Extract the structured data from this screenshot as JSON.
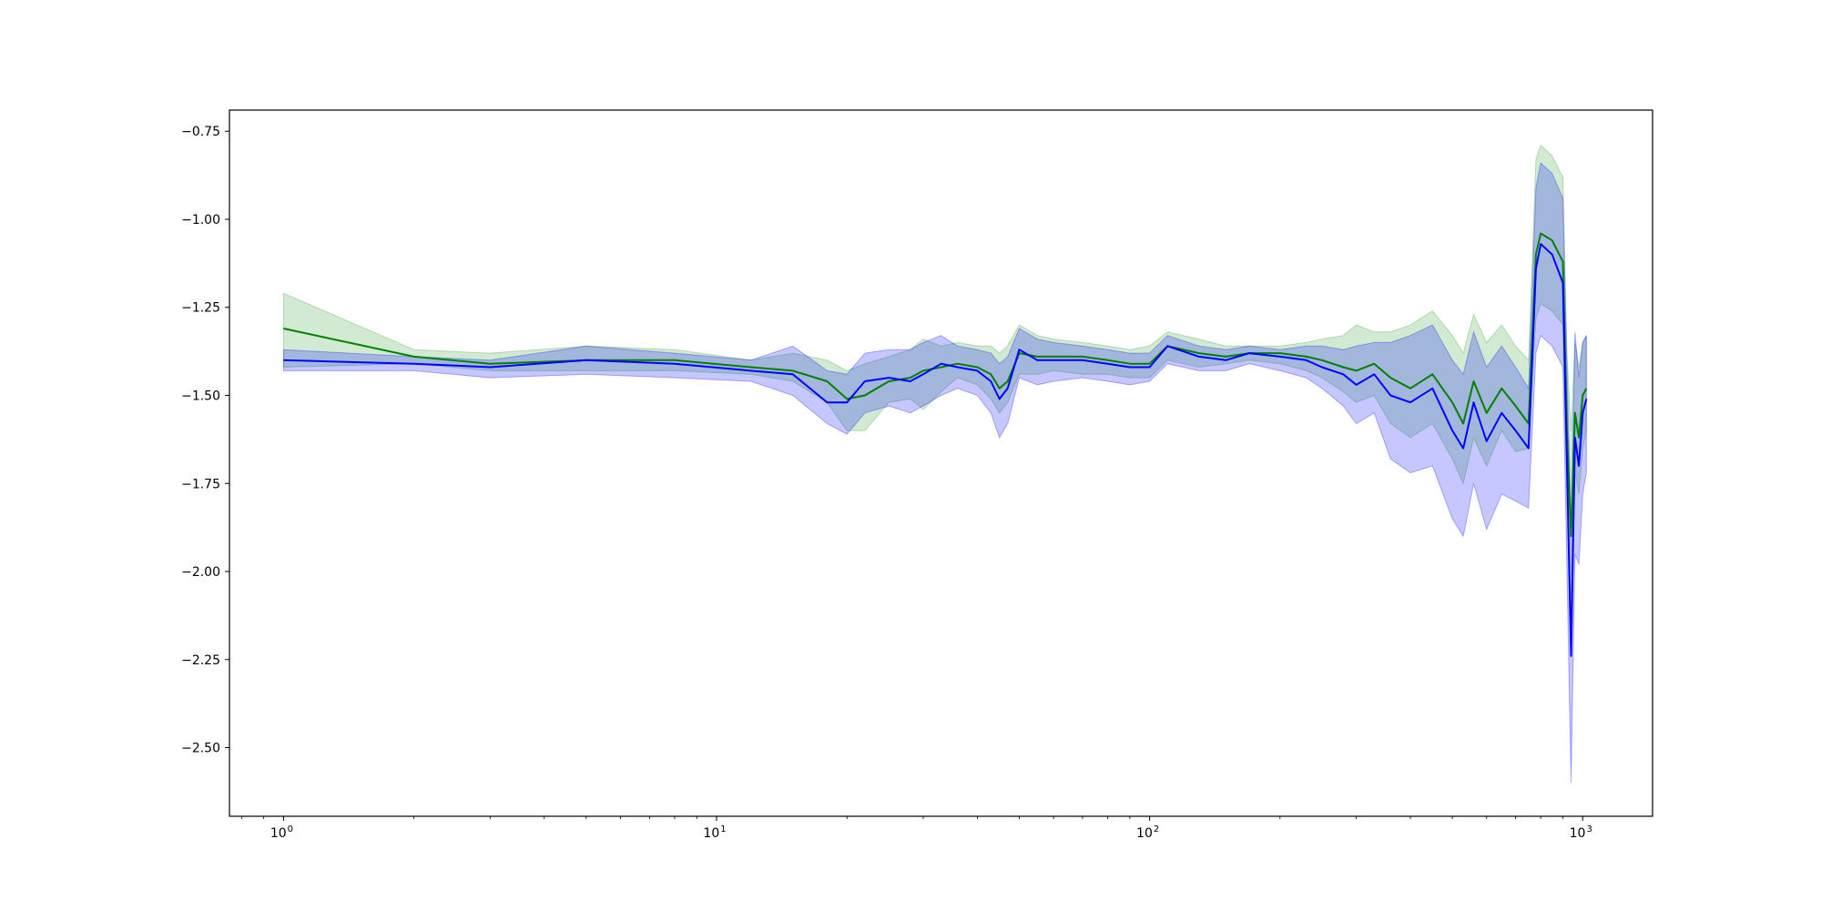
{
  "chart_data": {
    "type": "line",
    "title": "",
    "xlabel": "",
    "ylabel": "",
    "xscale": "log",
    "xlim": [
      0.75,
      1450
    ],
    "ylim": [
      -2.695,
      -0.69
    ],
    "grid": false,
    "legend": "none",
    "x_ticks": [
      {
        "value": 1,
        "base": "10",
        "exp": "0"
      },
      {
        "value": 10,
        "base": "10",
        "exp": "1"
      },
      {
        "value": 100,
        "base": "10",
        "exp": "2"
      },
      {
        "value": 1000,
        "base": "10",
        "exp": "3"
      }
    ],
    "y_ticks": [
      {
        "value": -0.75,
        "label": "−0.75"
      },
      {
        "value": -1.0,
        "label": "−1.00"
      },
      {
        "value": -1.25,
        "label": "−1.25"
      },
      {
        "value": -1.5,
        "label": "−1.50"
      },
      {
        "value": -1.75,
        "label": "−1.75"
      },
      {
        "value": -2.0,
        "label": "−2.00"
      },
      {
        "value": -2.25,
        "label": "−2.25"
      },
      {
        "value": -2.5,
        "label": "−2.50"
      }
    ],
    "series": [
      {
        "color": "#008000",
        "band_color": "#2ca02c",
        "x": [
          1,
          2,
          3,
          5,
          8,
          12,
          15,
          18,
          20,
          22,
          25,
          28,
          30,
          33,
          36,
          40,
          43,
          45,
          47,
          50,
          55,
          60,
          70,
          80,
          90,
          100,
          110,
          130,
          150,
          170,
          200,
          230,
          250,
          280,
          300,
          330,
          360,
          400,
          450,
          500,
          530,
          560,
          600,
          650,
          700,
          750,
          780,
          800,
          850,
          900,
          920,
          940,
          960,
          980,
          1000,
          1020
        ],
        "y": [
          -1.31,
          -1.39,
          -1.41,
          -1.4,
          -1.4,
          -1.42,
          -1.43,
          -1.46,
          -1.51,
          -1.5,
          -1.46,
          -1.45,
          -1.43,
          -1.42,
          -1.41,
          -1.42,
          -1.44,
          -1.48,
          -1.46,
          -1.38,
          -1.39,
          -1.39,
          -1.39,
          -1.4,
          -1.41,
          -1.41,
          -1.36,
          -1.38,
          -1.39,
          -1.38,
          -1.38,
          -1.39,
          -1.4,
          -1.42,
          -1.43,
          -1.41,
          -1.45,
          -1.48,
          -1.44,
          -1.52,
          -1.58,
          -1.46,
          -1.55,
          -1.48,
          -1.53,
          -1.58,
          -1.1,
          -1.04,
          -1.06,
          -1.12,
          -1.6,
          -1.9,
          -1.55,
          -1.62,
          -1.5,
          -1.48
        ],
        "lower": [
          -1.42,
          -1.41,
          -1.43,
          -1.43,
          -1.43,
          -1.44,
          -1.46,
          -1.52,
          -1.6,
          -1.6,
          -1.52,
          -1.51,
          -1.54,
          -1.49,
          -1.45,
          -1.47,
          -1.51,
          -1.55,
          -1.52,
          -1.44,
          -1.44,
          -1.43,
          -1.44,
          -1.44,
          -1.45,
          -1.45,
          -1.4,
          -1.42,
          -1.41,
          -1.4,
          -1.41,
          -1.43,
          -1.45,
          -1.49,
          -1.52,
          -1.5,
          -1.58,
          -1.62,
          -1.58,
          -1.68,
          -1.75,
          -1.62,
          -1.7,
          -1.6,
          -1.66,
          -1.65,
          -1.28,
          -1.24,
          -1.26,
          -1.3,
          -1.78,
          -2.1,
          -1.72,
          -1.78,
          -1.65,
          -1.6
        ],
        "upper": [
          -1.21,
          -1.37,
          -1.38,
          -1.36,
          -1.37,
          -1.4,
          -1.38,
          -1.4,
          -1.43,
          -1.41,
          -1.39,
          -1.37,
          -1.34,
          -1.36,
          -1.35,
          -1.36,
          -1.36,
          -1.38,
          -1.36,
          -1.3,
          -1.33,
          -1.34,
          -1.35,
          -1.36,
          -1.37,
          -1.36,
          -1.32,
          -1.34,
          -1.36,
          -1.36,
          -1.36,
          -1.35,
          -1.34,
          -1.33,
          -1.3,
          -1.32,
          -1.32,
          -1.3,
          -1.26,
          -1.33,
          -1.38,
          -1.27,
          -1.35,
          -1.3,
          -1.36,
          -1.4,
          -0.83,
          -0.79,
          -0.82,
          -0.88,
          -1.38,
          -1.6,
          -1.35,
          -1.42,
          -1.35,
          -1.33
        ]
      },
      {
        "color": "#0000ff",
        "band_color": "#0000ff",
        "x": [
          1,
          2,
          3,
          5,
          8,
          12,
          15,
          18,
          20,
          22,
          25,
          28,
          30,
          33,
          36,
          40,
          43,
          45,
          47,
          50,
          55,
          60,
          70,
          80,
          90,
          100,
          110,
          130,
          150,
          170,
          200,
          230,
          250,
          280,
          300,
          330,
          360,
          400,
          450,
          500,
          530,
          560,
          600,
          650,
          700,
          750,
          780,
          800,
          850,
          900,
          920,
          940,
          960,
          980,
          1000,
          1020
        ],
        "y": [
          -1.4,
          -1.41,
          -1.42,
          -1.4,
          -1.41,
          -1.43,
          -1.44,
          -1.52,
          -1.52,
          -1.46,
          -1.45,
          -1.46,
          -1.44,
          -1.41,
          -1.42,
          -1.43,
          -1.46,
          -1.51,
          -1.48,
          -1.37,
          -1.4,
          -1.4,
          -1.4,
          -1.41,
          -1.42,
          -1.42,
          -1.36,
          -1.39,
          -1.4,
          -1.38,
          -1.39,
          -1.4,
          -1.42,
          -1.44,
          -1.47,
          -1.44,
          -1.5,
          -1.52,
          -1.48,
          -1.6,
          -1.65,
          -1.52,
          -1.63,
          -1.55,
          -1.6,
          -1.65,
          -1.14,
          -1.07,
          -1.1,
          -1.18,
          -1.7,
          -2.24,
          -1.62,
          -1.7,
          -1.55,
          -1.51
        ],
        "lower": [
          -1.43,
          -1.43,
          -1.45,
          -1.44,
          -1.45,
          -1.46,
          -1.5,
          -1.58,
          -1.61,
          -1.55,
          -1.53,
          -1.55,
          -1.53,
          -1.5,
          -1.48,
          -1.5,
          -1.55,
          -1.62,
          -1.58,
          -1.45,
          -1.47,
          -1.46,
          -1.45,
          -1.46,
          -1.47,
          -1.46,
          -1.41,
          -1.43,
          -1.43,
          -1.41,
          -1.43,
          -1.45,
          -1.48,
          -1.53,
          -1.58,
          -1.55,
          -1.68,
          -1.72,
          -1.7,
          -1.85,
          -1.9,
          -1.75,
          -1.88,
          -1.78,
          -1.8,
          -1.82,
          -1.38,
          -1.33,
          -1.36,
          -1.42,
          -2.0,
          -2.6,
          -1.95,
          -1.98,
          -1.78,
          -1.72
        ],
        "upper": [
          -1.37,
          -1.39,
          -1.4,
          -1.36,
          -1.38,
          -1.4,
          -1.36,
          -1.43,
          -1.44,
          -1.38,
          -1.37,
          -1.37,
          -1.35,
          -1.33,
          -1.36,
          -1.37,
          -1.38,
          -1.41,
          -1.39,
          -1.31,
          -1.34,
          -1.35,
          -1.36,
          -1.37,
          -1.38,
          -1.38,
          -1.33,
          -1.36,
          -1.37,
          -1.36,
          -1.37,
          -1.36,
          -1.36,
          -1.37,
          -1.36,
          -1.35,
          -1.35,
          -1.33,
          -1.3,
          -1.4,
          -1.44,
          -1.32,
          -1.42,
          -1.36,
          -1.42,
          -1.48,
          -0.91,
          -0.84,
          -0.87,
          -0.94,
          -1.42,
          -1.88,
          -1.32,
          -1.45,
          -1.35,
          -1.33
        ]
      }
    ]
  }
}
